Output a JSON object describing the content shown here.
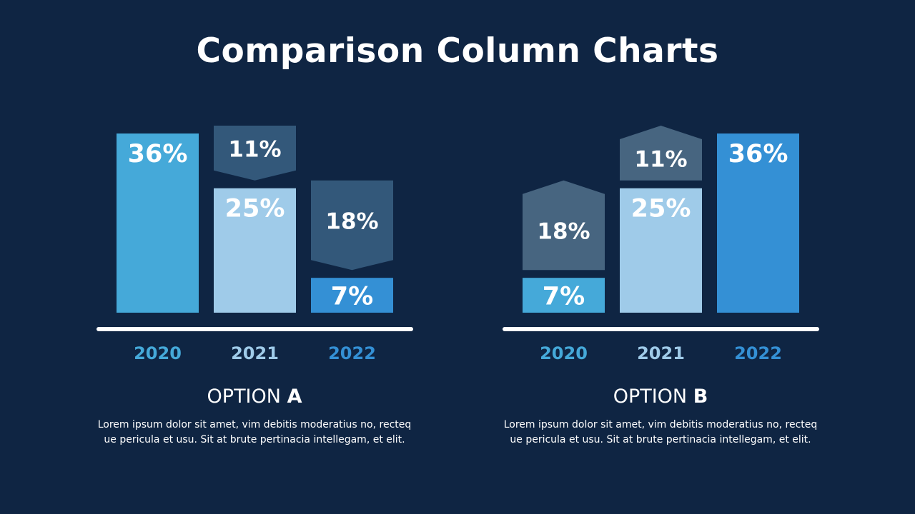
{
  "page": {
    "title": "Comparison Column Charts"
  },
  "colors": {
    "background": "#0f2543",
    "bar_2020": "#45a9d9",
    "bar_2021": "#9fcbe9",
    "bar_2022": "#3490d5",
    "change_down": "#33587a",
    "change_up": "#476580",
    "axis": "#ffffff"
  },
  "options": [
    {
      "title_prefix": "OPTION ",
      "title_letter": "A",
      "description_line1": "Lorem ipsum dolor sit amet, vim debitis moderatius no, recteq",
      "description_line2": "ue pericula et usu. Sit at brute pertinacia intellegam, et elit."
    },
    {
      "title_prefix": "OPTION ",
      "title_letter": "B",
      "description_line1": "Lorem ipsum dolor sit amet, vim debitis moderatius no, recteq",
      "description_line2": "ue pericula et usu. Sit at brute pertinacia intellegam, et elit."
    }
  ],
  "chart_data": [
    {
      "type": "bar",
      "categories": [
        "2020",
        "2021",
        "2022"
      ],
      "values": [
        36,
        25,
        7
      ],
      "changes": [
        null,
        11,
        18
      ],
      "change_direction": "down",
      "value_labels": [
        "36%",
        "25%",
        "7%"
      ],
      "change_labels": [
        "",
        "11%",
        "18%"
      ],
      "ylim": [
        0,
        36
      ],
      "title": "",
      "xlabel": "",
      "ylabel": ""
    },
    {
      "type": "bar",
      "categories": [
        "2020",
        "2021",
        "2022"
      ],
      "values": [
        7,
        25,
        36
      ],
      "changes": [
        18,
        11,
        null
      ],
      "change_direction": "up",
      "value_labels": [
        "7%",
        "25%",
        "36%"
      ],
      "change_labels": [
        "18%",
        "11%",
        ""
      ],
      "ylim": [
        0,
        36
      ],
      "title": "",
      "xlabel": "",
      "ylabel": ""
    }
  ]
}
